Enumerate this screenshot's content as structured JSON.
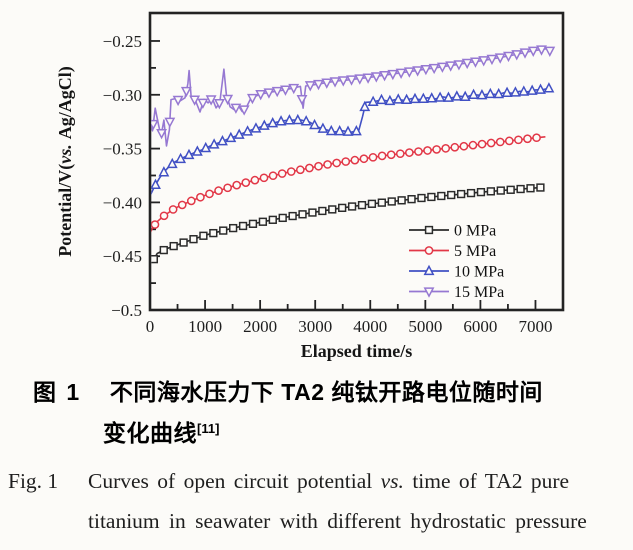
{
  "page": {
    "background": "#fcfbf8"
  },
  "captions": {
    "cn_label": "图 1",
    "cn_line1": "不同海水压力下 TA2 纯钛开路电位随时间",
    "cn_line2": "变化曲线",
    "cn_ref": "[11]",
    "en_label": "Fig. 1",
    "en_seg1": "Curves of open circuit potential",
    "en_vs": "vs.",
    "en_seg2": "time of TA2 pure",
    "en_line2": "titanium in seawater with different hydrostatic pressure"
  },
  "chart_data": {
    "type": "line",
    "title": "",
    "xlabel": "Elapsed time/s",
    "ylabel": {
      "part1": "Potential/V(",
      "vs": "vs.",
      "part2": "Ag/AgCl)"
    },
    "xlim": [
      0,
      7500
    ],
    "ylim": [
      -0.5,
      -0.224
    ],
    "grid": false,
    "legend_position": "inside-bottom-right",
    "axis_color": "#232323",
    "x_ticks": [
      0,
      1000,
      2000,
      3000,
      4000,
      5000,
      6000,
      7000
    ],
    "x_tick_labels": [
      "0",
      "1000",
      "2000",
      "3000",
      "4000",
      "5000",
      "6000",
      "7000"
    ],
    "x_minor_ticks": [
      500,
      1500,
      2500,
      3500,
      4500,
      5500,
      6500,
      7500
    ],
    "y_ticks": [
      -0.25,
      -0.3,
      -0.35,
      -0.4,
      -0.45,
      -0.5
    ],
    "y_tick_labels": [
      "−0.25",
      "−0.30",
      "−0.35",
      "−0.40",
      "−0.45",
      "−0.5"
    ],
    "y_minor_ticks": [
      -0.275,
      -0.325,
      -0.375,
      -0.425,
      -0.475
    ],
    "series": [
      {
        "name": "0 MPa",
        "color": "#2b2b2b",
        "marker": "square",
        "marker_every": 180,
        "marker_start": 70,
        "points": [
          [
            0,
            -0.45
          ],
          [
            50,
            -0.4545
          ],
          [
            130,
            -0.4475
          ],
          [
            300,
            -0.443
          ],
          [
            600,
            -0.4375
          ],
          [
            1000,
            -0.4305
          ],
          [
            1500,
            -0.424
          ],
          [
            2000,
            -0.4185
          ],
          [
            2500,
            -0.4135
          ],
          [
            3000,
            -0.409
          ],
          [
            3500,
            -0.405
          ],
          [
            4000,
            -0.4015
          ],
          [
            4500,
            -0.3985
          ],
          [
            5000,
            -0.3955
          ],
          [
            5500,
            -0.393
          ],
          [
            6000,
            -0.3905
          ],
          [
            6500,
            -0.3885
          ],
          [
            7000,
            -0.3865
          ],
          [
            7150,
            -0.386
          ]
        ]
      },
      {
        "name": "5 MPa",
        "color": "#e23747",
        "marker": "circle",
        "marker_every": 165,
        "marker_start": 90,
        "points": [
          [
            0,
            -0.4285
          ],
          [
            60,
            -0.4225
          ],
          [
            140,
            -0.4175
          ],
          [
            240,
            -0.413
          ],
          [
            350,
            -0.409
          ],
          [
            450,
            -0.4055
          ],
          [
            600,
            -0.402
          ],
          [
            800,
            -0.3975
          ],
          [
            1000,
            -0.3935
          ],
          [
            1250,
            -0.389
          ],
          [
            1500,
            -0.385
          ],
          [
            1750,
            -0.3815
          ],
          [
            2000,
            -0.378
          ],
          [
            2250,
            -0.375
          ],
          [
            2500,
            -0.372
          ],
          [
            2750,
            -0.3695
          ],
          [
            3000,
            -0.367
          ],
          [
            3250,
            -0.3645
          ],
          [
            3500,
            -0.3625
          ],
          [
            3750,
            -0.3605
          ],
          [
            4000,
            -0.3585
          ],
          [
            4250,
            -0.3565
          ],
          [
            4500,
            -0.355
          ],
          [
            4750,
            -0.3535
          ],
          [
            5000,
            -0.352
          ],
          [
            5250,
            -0.3505
          ],
          [
            5500,
            -0.349
          ],
          [
            5750,
            -0.3475
          ],
          [
            6000,
            -0.346
          ],
          [
            6250,
            -0.3445
          ],
          [
            6500,
            -0.343
          ],
          [
            6750,
            -0.3415
          ],
          [
            7000,
            -0.34
          ],
          [
            7180,
            -0.339
          ]
        ]
      },
      {
        "name": "10 MPa",
        "color": "#4150c4",
        "marker": "triangle-up",
        "marker_every": 152,
        "marker_start": 100,
        "points": [
          [
            0,
            -0.394
          ],
          [
            80,
            -0.3855
          ],
          [
            170,
            -0.3775
          ],
          [
            260,
            -0.3715
          ],
          [
            350,
            -0.3665
          ],
          [
            450,
            -0.3625
          ],
          [
            560,
            -0.3595
          ],
          [
            680,
            -0.3565
          ],
          [
            800,
            -0.354
          ],
          [
            950,
            -0.351
          ],
          [
            1100,
            -0.3475
          ],
          [
            1250,
            -0.3445
          ],
          [
            1400,
            -0.3415
          ],
          [
            1550,
            -0.3385
          ],
          [
            1700,
            -0.3355
          ],
          [
            1850,
            -0.3325
          ],
          [
            2000,
            -0.33
          ],
          [
            2150,
            -0.3275
          ],
          [
            2300,
            -0.3255
          ],
          [
            2450,
            -0.324
          ],
          [
            2600,
            -0.3235
          ],
          [
            2750,
            -0.3235
          ],
          [
            2900,
            -0.3255
          ],
          [
            3050,
            -0.33
          ],
          [
            3200,
            -0.3325
          ],
          [
            3350,
            -0.3345
          ],
          [
            3500,
            -0.3335
          ],
          [
            3650,
            -0.3348
          ],
          [
            3790,
            -0.3335
          ],
          [
            3860,
            -0.32
          ],
          [
            3920,
            -0.307
          ],
          [
            4060,
            -0.3065
          ],
          [
            4200,
            -0.3048
          ],
          [
            4340,
            -0.306
          ],
          [
            4480,
            -0.3042
          ],
          [
            4620,
            -0.3052
          ],
          [
            4760,
            -0.3035
          ],
          [
            4900,
            -0.3045
          ],
          [
            5040,
            -0.3028
          ],
          [
            5180,
            -0.3038
          ],
          [
            5320,
            -0.302
          ],
          [
            5460,
            -0.303
          ],
          [
            5600,
            -0.3012
          ],
          [
            5740,
            -0.302
          ],
          [
            5880,
            -0.3
          ],
          [
            6020,
            -0.3005
          ],
          [
            6160,
            -0.2992
          ],
          [
            6300,
            -0.2998
          ],
          [
            6440,
            -0.298
          ],
          [
            6580,
            -0.2985
          ],
          [
            6720,
            -0.2968
          ],
          [
            6860,
            -0.2972
          ],
          [
            7000,
            -0.2955
          ],
          [
            7130,
            -0.2952
          ],
          [
            7250,
            -0.294
          ]
        ]
      },
      {
        "name": "15 MPa",
        "color": "#9678d2",
        "marker": "triangle-down",
        "marker_every": 150,
        "marker_start": 60,
        "points": [
          [
            0,
            -0.32
          ],
          [
            45,
            -0.3335
          ],
          [
            95,
            -0.3125
          ],
          [
            145,
            -0.3255
          ],
          [
            200,
            -0.3385
          ],
          [
            252,
            -0.3235
          ],
          [
            300,
            -0.3475
          ],
          [
            352,
            -0.3325
          ],
          [
            382,
            -0.3045
          ],
          [
            470,
            -0.3035
          ],
          [
            545,
            -0.3058
          ],
          [
            635,
            -0.3028
          ],
          [
            688,
            -0.2895
          ],
          [
            710,
            -0.2775
          ],
          [
            748,
            -0.3025
          ],
          [
            820,
            -0.3048
          ],
          [
            908,
            -0.316
          ],
          [
            980,
            -0.3042
          ],
          [
            1055,
            -0.3075
          ],
          [
            1130,
            -0.3032
          ],
          [
            1200,
            -0.3122
          ],
          [
            1268,
            -0.3072
          ],
          [
            1342,
            -0.2762
          ],
          [
            1388,
            -0.3002
          ],
          [
            1455,
            -0.3112
          ],
          [
            1528,
            -0.3138
          ],
          [
            1600,
            -0.3098
          ],
          [
            1672,
            -0.3155
          ],
          [
            1748,
            -0.3118
          ],
          [
            1822,
            -0.3042
          ],
          [
            1910,
            -0.3015
          ],
          [
            2000,
            -0.2995
          ],
          [
            2200,
            -0.2975
          ],
          [
            2400,
            -0.2958
          ],
          [
            2600,
            -0.2938
          ],
          [
            2732,
            -0.2922
          ],
          [
            2780,
            -0.3125
          ],
          [
            2828,
            -0.2918
          ],
          [
            3000,
            -0.2905
          ],
          [
            3200,
            -0.2888
          ],
          [
            3400,
            -0.2872
          ],
          [
            3600,
            -0.2862
          ],
          [
            3800,
            -0.285
          ],
          [
            4000,
            -0.2838
          ],
          [
            4200,
            -0.2822
          ],
          [
            4400,
            -0.2808
          ],
          [
            4600,
            -0.2792
          ],
          [
            4800,
            -0.2778
          ],
          [
            5000,
            -0.2762
          ],
          [
            5200,
            -0.2748
          ],
          [
            5400,
            -0.2732
          ],
          [
            5600,
            -0.2718
          ],
          [
            5800,
            -0.27
          ],
          [
            6000,
            -0.2685
          ],
          [
            6200,
            -0.2668
          ],
          [
            6400,
            -0.265
          ],
          [
            6600,
            -0.263
          ],
          [
            6800,
            -0.2608
          ],
          [
            6950,
            -0.2592
          ],
          [
            7100,
            -0.258
          ],
          [
            7210,
            -0.2572
          ],
          [
            7280,
            -0.2598
          ]
        ]
      }
    ]
  }
}
